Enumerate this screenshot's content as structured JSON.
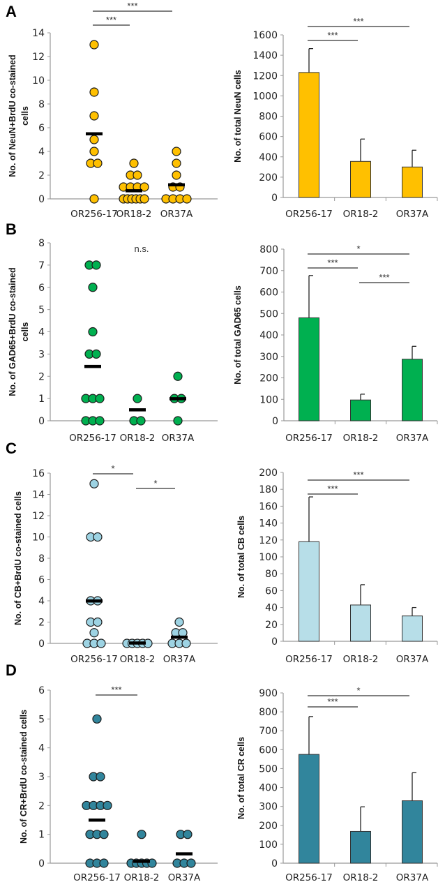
{
  "panel_labels": [
    "A",
    "B",
    "C",
    "D"
  ],
  "chart_data": [
    {
      "panel": "A",
      "type": "scatter",
      "ylabel": [
        "No. of NeuN+BrdU co-stained",
        "cells"
      ],
      "ylim": [
        0,
        14
      ],
      "ytick_step": 2,
      "color": "#FFC000",
      "categories": [
        "OR256-17",
        "OR18-2",
        "OR37A"
      ],
      "points": [
        [
          13,
          9,
          7,
          5,
          4,
          3,
          3,
          0
        ],
        [
          3,
          2,
          2,
          1,
          1,
          1,
          1,
          0,
          0,
          0,
          0,
          0,
          0
        ],
        [
          4,
          3,
          2,
          1,
          1,
          0,
          0,
          0,
          0
        ]
      ],
      "means": [
        5.5,
        0.7,
        1.2
      ],
      "significance": [
        {
          "from": 0,
          "to": 2,
          "label": "***"
        },
        {
          "from": 0,
          "to": 1,
          "label": "***"
        }
      ]
    },
    {
      "panel": "A",
      "type": "bar",
      "ylabel": [
        "No. of total NeuN cells"
      ],
      "ylim": [
        0,
        1600
      ],
      "ytick_step": 200,
      "color": "#FFC000",
      "categories": [
        "OR256-17",
        "OR18-2",
        "OR37A"
      ],
      "values": [
        1230,
        355,
        300
      ],
      "errors": [
        235,
        220,
        165
      ],
      "significance": [
        {
          "from": 0,
          "to": 2,
          "label": "***"
        },
        {
          "from": 0,
          "to": 1,
          "label": "***"
        }
      ]
    },
    {
      "panel": "B",
      "type": "scatter",
      "ylabel": [
        "No. of GAD65+BrdU co-stained",
        "cells"
      ],
      "ylim": [
        0,
        8
      ],
      "ytick_step": 1,
      "color": "#00B050",
      "categories": [
        "OR256-17",
        "OR18-2",
        "OR37A"
      ],
      "points": [
        [
          7,
          7,
          6,
          4,
          3,
          3,
          1,
          1,
          1,
          0,
          0,
          0
        ],
        [
          1,
          0,
          0
        ],
        [
          2,
          1,
          1,
          0
        ]
      ],
      "means": [
        2.45,
        0.5,
        1.0
      ],
      "annotation": "n.s.",
      "significance": []
    },
    {
      "panel": "B",
      "type": "bar",
      "ylabel": [
        "No. of total GAD65 cells"
      ],
      "ylim": [
        0,
        800
      ],
      "ytick_step": 100,
      "color": "#00B050",
      "categories": [
        "OR256-17",
        "OR18-2",
        "OR37A"
      ],
      "values": [
        480,
        97,
        287
      ],
      "errors": [
        197,
        27,
        60
      ],
      "significance": [
        {
          "from": 0,
          "to": 2,
          "label": "*"
        },
        {
          "from": 0,
          "to": 1,
          "label": "***"
        },
        {
          "from": 1,
          "to": 2,
          "label": "***"
        }
      ]
    },
    {
      "panel": "C",
      "type": "scatter",
      "ylabel": [
        "No. of CB+BrdU co-stained cells"
      ],
      "ylim": [
        0,
        16
      ],
      "ytick_step": 2,
      "color": "#9DD3E3",
      "categories": [
        "OR256-17",
        "OR18-2",
        "OR37A"
      ],
      "points": [
        [
          15,
          10,
          10,
          4,
          4,
          2,
          2,
          1,
          0,
          0,
          0
        ],
        [
          0,
          0,
          0,
          0,
          0
        ],
        [
          2,
          1,
          1,
          0,
          0,
          0
        ]
      ],
      "means": [
        4.0,
        0.05,
        0.6
      ],
      "significance": [
        {
          "from": 0,
          "to": 1,
          "label": "*"
        },
        {
          "from": 1,
          "to": 2,
          "label": "*"
        }
      ]
    },
    {
      "panel": "C",
      "type": "bar",
      "ylabel": [
        "No. of total CB cells"
      ],
      "ylim": [
        0,
        200
      ],
      "ytick_step": 20,
      "color": "#B7DEE8",
      "categories": [
        "OR256-17",
        "OR18-2",
        "OR37A"
      ],
      "values": [
        118,
        43,
        30
      ],
      "errors": [
        53,
        24,
        10
      ],
      "significance": [
        {
          "from": 0,
          "to": 2,
          "label": "***"
        },
        {
          "from": 0,
          "to": 1,
          "label": "***"
        }
      ]
    },
    {
      "panel": "D",
      "type": "scatter",
      "ylabel": [
        "No. of CR+BrdU co-stained cells"
      ],
      "ylim": [
        0,
        6
      ],
      "ytick_step": 1,
      "color": "#31859C",
      "categories": [
        "OR256-17",
        "OR18-2",
        "OR37A"
      ],
      "points": [
        [
          5,
          3,
          3,
          2,
          2,
          2,
          2,
          1,
          1,
          1,
          0,
          0,
          0
        ],
        [
          1,
          0,
          0,
          0,
          0,
          0
        ],
        [
          1,
          1,
          0,
          0,
          0
        ]
      ],
      "means": [
        1.5,
        0.07,
        0.33
      ],
      "significance": [
        {
          "from": 0,
          "to": 1,
          "label": "***"
        }
      ]
    },
    {
      "panel": "D",
      "type": "bar",
      "ylabel": [
        "No. of total CR cells"
      ],
      "ylim": [
        0,
        900
      ],
      "ytick_step": 100,
      "color": "#31859C",
      "categories": [
        "OR256-17",
        "OR18-2",
        "OR37A"
      ],
      "values": [
        575,
        168,
        330
      ],
      "errors": [
        200,
        130,
        148
      ],
      "significance": [
        {
          "from": 0,
          "to": 2,
          "label": "*"
        },
        {
          "from": 0,
          "to": 1,
          "label": "***"
        }
      ]
    }
  ]
}
